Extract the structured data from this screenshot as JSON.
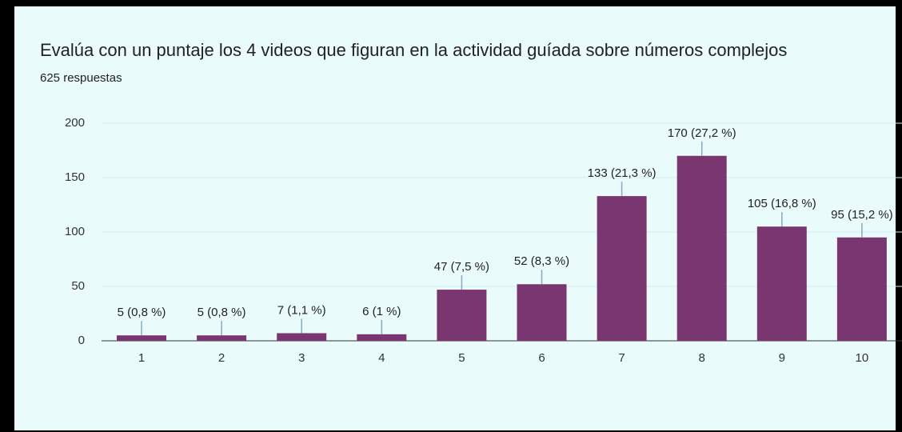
{
  "chart_data": {
    "type": "bar",
    "title": "Evalúa con un puntaje los 4 videos que figuran en la actividad guíada sobre números complejos",
    "subtitle": "625 respuestas",
    "categories": [
      "1",
      "2",
      "3",
      "4",
      "5",
      "6",
      "7",
      "8",
      "9",
      "10"
    ],
    "values": [
      5,
      5,
      7,
      6,
      47,
      52,
      133,
      170,
      105,
      95
    ],
    "value_labels": [
      "5 (0,8 %)",
      "5 (0,8 %)",
      "7 (1,1 %)",
      "6 (1 %)",
      "47 (7,5 %)",
      "52 (8,3 %)",
      "133 (21,3 %)",
      "170 (27,2 %)",
      "105 (16,8 %)",
      "95 (15,2 %)"
    ],
    "color": "#7a3670",
    "ylim": [
      0,
      200
    ],
    "yticks": [
      0,
      50,
      100,
      150,
      200
    ],
    "grid": true
  }
}
